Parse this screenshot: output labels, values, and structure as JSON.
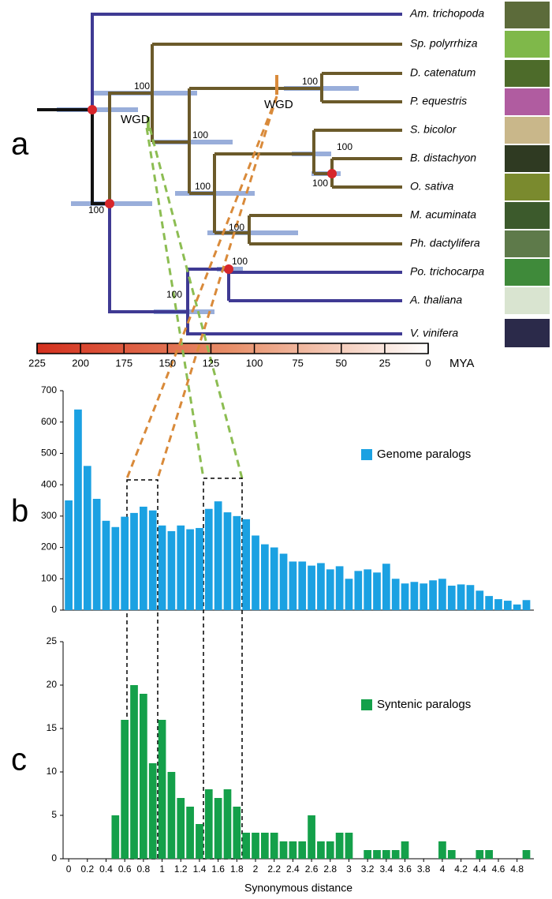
{
  "panel_labels": [
    "a",
    "b",
    "c"
  ],
  "tree": {
    "species": [
      "Am. trichopoda",
      "Sp. polyrrhiza",
      "D. catenatum",
      "P. equestris",
      "S. bicolor",
      "B. distachyon",
      "O. sativa",
      "M. acuminata",
      "Ph. dactylifera",
      "Po. trichocarpa",
      "A. thaliana",
      "V. vinifera"
    ],
    "bootstrap": [
      100,
      100,
      100,
      100,
      100,
      100,
      100,
      100,
      100,
      100
    ],
    "wgd": [
      "WGD",
      "WGD"
    ],
    "timescale": {
      "lim": [
        225,
        0
      ],
      "ticks": [
        225,
        200,
        175,
        150,
        125,
        100,
        75,
        50,
        25,
        0
      ],
      "unit": "MYA"
    }
  },
  "chart_data": [
    {
      "type": "bar",
      "x": [
        0,
        0.1,
        0.2,
        0.3,
        0.4,
        0.5,
        0.6,
        0.7,
        0.8,
        0.9,
        1,
        1.1,
        1.2,
        1.3,
        1.4,
        1.5,
        1.6,
        1.7,
        1.8,
        1.9,
        2,
        2.1,
        2.2,
        2.3,
        2.4,
        2.5,
        2.6,
        2.7,
        2.8,
        2.9,
        3,
        3.1,
        3.2,
        3.3,
        3.4,
        3.5,
        3.6,
        3.7,
        3.8,
        3.9,
        4,
        4.1,
        4.2,
        4.3,
        4.4,
        4.5,
        4.6,
        4.7,
        4.8,
        4.9
      ],
      "series": [
        {
          "name": "Genome paralogs",
          "color": "#1ba1e2",
          "values": [
            350,
            640,
            460,
            355,
            285,
            265,
            298,
            310,
            330,
            318,
            270,
            252,
            270,
            258,
            262,
            323,
            347,
            312,
            300,
            290,
            238,
            210,
            200,
            180,
            155,
            155,
            142,
            150,
            130,
            140,
            100,
            125,
            130,
            120,
            148,
            100,
            85,
            90,
            85,
            95,
            100,
            78,
            82,
            80,
            62,
            45,
            35,
            30,
            18,
            32
          ]
        }
      ],
      "xlim": [
        -0.06,
        4.98
      ],
      "ylim": [
        0,
        700
      ],
      "yticks": [
        0,
        100,
        200,
        300,
        400,
        500,
        600,
        700
      ]
    },
    {
      "type": "bar",
      "x": [
        0,
        0.1,
        0.2,
        0.3,
        0.4,
        0.5,
        0.6,
        0.7,
        0.8,
        0.9,
        1,
        1.1,
        1.2,
        1.3,
        1.4,
        1.5,
        1.6,
        1.7,
        1.8,
        1.9,
        2,
        2.1,
        2.2,
        2.3,
        2.4,
        2.5,
        2.6,
        2.7,
        2.8,
        2.9,
        3,
        3.1,
        3.2,
        3.3,
        3.4,
        3.5,
        3.6,
        3.7,
        3.8,
        3.9,
        4,
        4.1,
        4.2,
        4.3,
        4.4,
        4.5,
        4.6,
        4.7,
        4.8,
        4.9
      ],
      "series": [
        {
          "name": "Syntenic paralogs",
          "color": "#14a04a",
          "values": [
            0,
            0,
            0,
            0,
            0,
            5,
            16,
            20,
            19,
            11,
            16,
            10,
            7,
            6,
            4,
            8,
            7,
            8,
            6,
            3,
            3,
            3,
            3,
            2,
            2,
            2,
            5,
            2,
            2,
            3,
            3,
            0,
            1,
            1,
            1,
            1,
            2,
            0,
            0,
            0,
            2,
            1,
            0,
            0,
            1,
            1,
            0,
            0,
            0,
            1
          ]
        }
      ],
      "xlim": [
        -0.06,
        4.98
      ],
      "ylim": [
        0,
        25
      ],
      "yticks": [
        0,
        5,
        10,
        15,
        20,
        25
      ],
      "xticks": [
        0,
        0.2,
        0.4,
        0.6,
        0.8,
        1,
        1.2,
        1.4,
        1.6,
        1.8,
        2,
        2.2,
        2.4,
        2.6,
        2.8,
        3,
        3.2,
        3.4,
        3.6,
        3.8,
        4,
        4.2,
        4.4,
        4.6,
        4.8
      ],
      "xlabel": "Synonymous distance"
    }
  ]
}
